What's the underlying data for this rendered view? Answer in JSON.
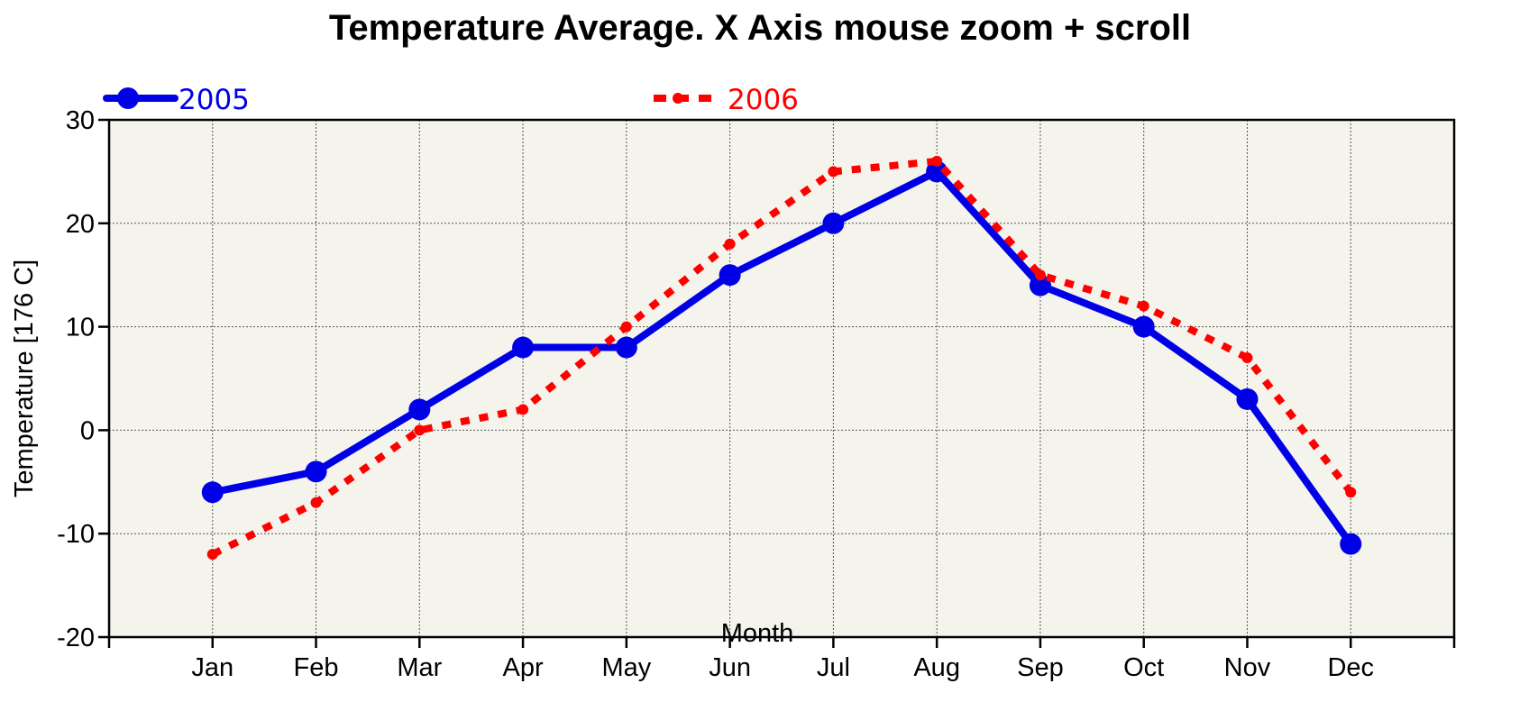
{
  "chart_data": {
    "type": "line",
    "title": "Temperature Average. X Axis mouse zoom + scroll",
    "xlabel": "Month",
    "ylabel": "Temperature [176 C]",
    "categories": [
      "Jan",
      "Feb",
      "Mar",
      "Apr",
      "May",
      "Jun",
      "Jul",
      "Aug",
      "Sep",
      "Oct",
      "Nov",
      "Dec"
    ],
    "ylim": [
      -20,
      30
    ],
    "yticks": [
      "30",
      "20",
      "10",
      "0",
      "-10",
      "-20"
    ],
    "grid": true,
    "legend_position": "top",
    "series": [
      {
        "name": "2005",
        "color": "#0000e6",
        "style": "solid",
        "marker": "circle-large",
        "values": [
          -6,
          -4,
          2,
          8,
          8,
          15,
          20,
          25,
          14,
          10,
          3,
          -11
        ]
      },
      {
        "name": "2006",
        "color": "#ff0000",
        "style": "dotted",
        "marker": "circle-small",
        "values": [
          -12,
          -7,
          0,
          2,
          10,
          18,
          25,
          26,
          15,
          12,
          7,
          -6
        ]
      }
    ]
  },
  "colors": {
    "plot_background": "#f4f3ec",
    "grid": "#555555",
    "axis": "#000000"
  }
}
